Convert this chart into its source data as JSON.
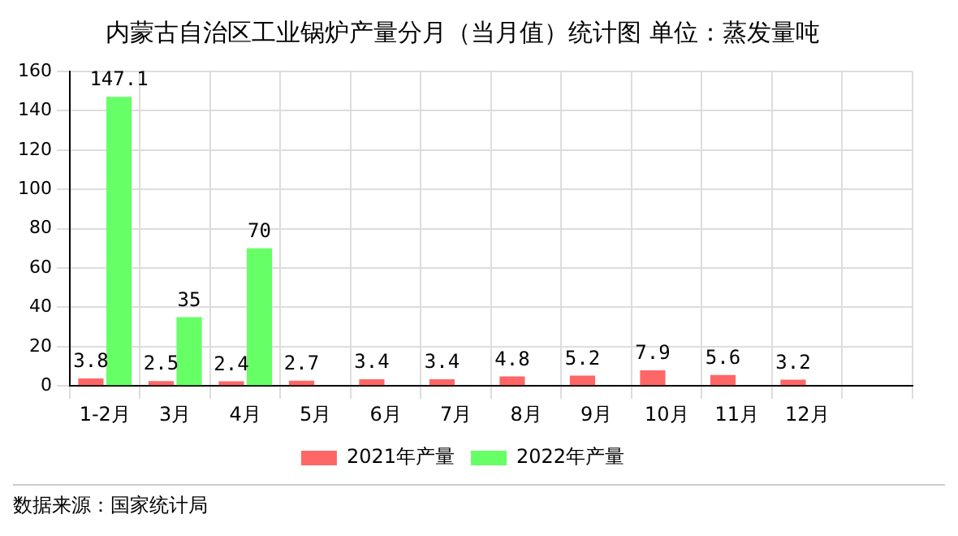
{
  "chart_data": {
    "type": "bar",
    "title": "内蒙古自治区工业锅炉产量分月（当月值）统计图 单位：蒸发量吨",
    "categories": [
      "1-2月",
      "3月",
      "4月",
      "5月",
      "6月",
      "7月",
      "8月",
      "9月",
      "10月",
      "11月",
      "12月",
      null
    ],
    "series": [
      {
        "name": "2021年产量",
        "color": "#ff6666",
        "values": [
          3.8,
          2.5,
          2.4,
          2.7,
          3.4,
          3.4,
          4.8,
          5.2,
          7.9,
          5.6,
          3.2,
          null
        ]
      },
      {
        "name": "2022年产量",
        "color": "#66ff66",
        "values": [
          147.1,
          35,
          70,
          null,
          null,
          null,
          null,
          null,
          null,
          null,
          null,
          null
        ]
      }
    ],
    "ylim": [
      0,
      160
    ],
    "yticks": [
      0,
      20,
      40,
      60,
      80,
      100,
      120,
      140,
      160
    ],
    "grid": true,
    "legend": "bottom",
    "data_labels": true,
    "annotations": [
      "数据来源：国家统计局"
    ]
  }
}
